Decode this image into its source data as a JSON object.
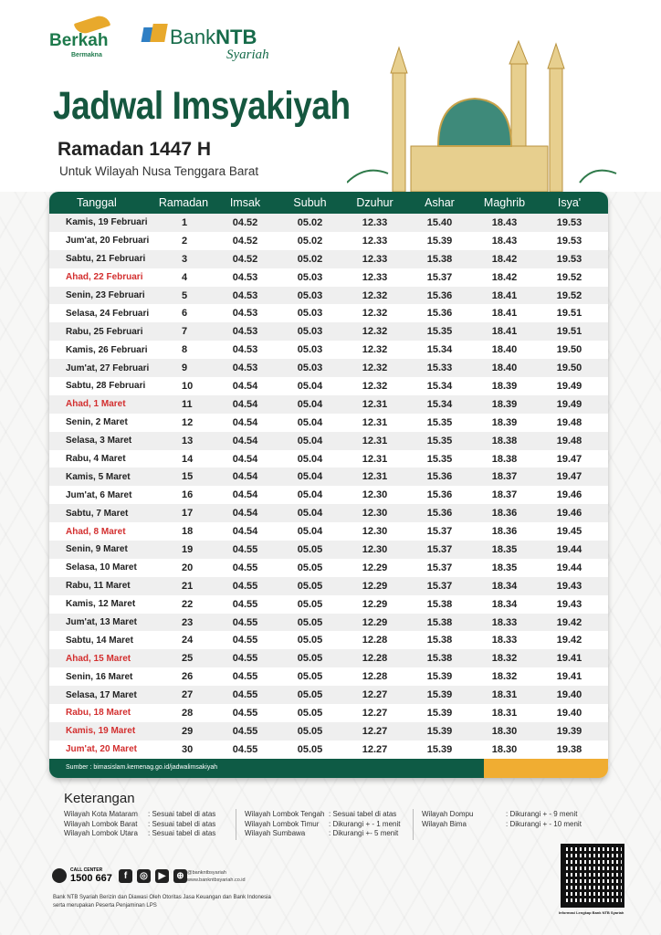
{
  "brand": {
    "berkah": "Berkah",
    "berkah_tag": "Bermakna",
    "bank_a": "Bank",
    "bank_b": "NTB",
    "bank_sub": "Syariah",
    "accent": "#0e5b45",
    "gold": "#f0ad32",
    "holiday": "#d32f2f"
  },
  "header": {
    "title": "Jadwal Imsyakiyah",
    "subtitle": "Ramadan 1447 H",
    "region": "Untuk Wilayah Nusa Tenggara Barat"
  },
  "table": {
    "columns": [
      "Tanggal",
      "Ramadan",
      "Imsak",
      "Subuh",
      "Dzuhur",
      "Ashar",
      "Maghrib",
      "Isya'"
    ],
    "rows": [
      [
        "Kamis, 19 Februari",
        "1",
        "04.52",
        "05.02",
        "12.33",
        "15.40",
        "18.43",
        "19.53",
        false
      ],
      [
        "Jum'at, 20 Februari",
        "2",
        "04.52",
        "05.02",
        "12.33",
        "15.39",
        "18.43",
        "19.53",
        false
      ],
      [
        "Sabtu, 21 Februari",
        "3",
        "04.52",
        "05.02",
        "12.33",
        "15.38",
        "18.42",
        "19.53",
        false
      ],
      [
        "Ahad, 22 Februari",
        "4",
        "04.53",
        "05.03",
        "12.33",
        "15.37",
        "18.42",
        "19.52",
        true
      ],
      [
        "Senin, 23 Februari",
        "5",
        "04.53",
        "05.03",
        "12.32",
        "15.36",
        "18.41",
        "19.52",
        false
      ],
      [
        "Selasa, 24 Februari",
        "6",
        "04.53",
        "05.03",
        "12.32",
        "15.36",
        "18.41",
        "19.51",
        false
      ],
      [
        "Rabu, 25 Februari",
        "7",
        "04.53",
        "05.03",
        "12.32",
        "15.35",
        "18.41",
        "19.51",
        false
      ],
      [
        "Kamis, 26 Februari",
        "8",
        "04.53",
        "05.03",
        "12.32",
        "15.34",
        "18.40",
        "19.50",
        false
      ],
      [
        "Jum'at, 27 Februari",
        "9",
        "04.53",
        "05.03",
        "12.32",
        "15.33",
        "18.40",
        "19.50",
        false
      ],
      [
        "Sabtu, 28 Februari",
        "10",
        "04.54",
        "05.04",
        "12.32",
        "15.34",
        "18.39",
        "19.49",
        false
      ],
      [
        "Ahad, 1 Maret",
        "11",
        "04.54",
        "05.04",
        "12.31",
        "15.34",
        "18.39",
        "19.49",
        true
      ],
      [
        "Senin, 2 Maret",
        "12",
        "04.54",
        "05.04",
        "12.31",
        "15.35",
        "18.39",
        "19.48",
        false
      ],
      [
        "Selasa, 3 Maret",
        "13",
        "04.54",
        "05.04",
        "12.31",
        "15.35",
        "18.38",
        "19.48",
        false
      ],
      [
        "Rabu, 4 Maret",
        "14",
        "04.54",
        "05.04",
        "12.31",
        "15.35",
        "18.38",
        "19.47",
        false
      ],
      [
        "Kamis, 5 Maret",
        "15",
        "04.54",
        "05.04",
        "12.31",
        "15.36",
        "18.37",
        "19.47",
        false
      ],
      [
        "Jum'at, 6 Maret",
        "16",
        "04.54",
        "05.04",
        "12.30",
        "15.36",
        "18.37",
        "19.46",
        false
      ],
      [
        "Sabtu, 7 Maret",
        "17",
        "04.54",
        "05.04",
        "12.30",
        "15.36",
        "18.36",
        "19.46",
        false
      ],
      [
        "Ahad, 8 Maret",
        "18",
        "04.54",
        "05.04",
        "12.30",
        "15.37",
        "18.36",
        "19.45",
        true
      ],
      [
        "Senin, 9 Maret",
        "19",
        "04.55",
        "05.05",
        "12.30",
        "15.37",
        "18.35",
        "19.44",
        false
      ],
      [
        "Selasa, 10 Maret",
        "20",
        "04.55",
        "05.05",
        "12.29",
        "15.37",
        "18.35",
        "19.44",
        false
      ],
      [
        "Rabu, 11 Maret",
        "21",
        "04.55",
        "05.05",
        "12.29",
        "15.37",
        "18.34",
        "19.43",
        false
      ],
      [
        "Kamis, 12 Maret",
        "22",
        "04.55",
        "05.05",
        "12.29",
        "15.38",
        "18.34",
        "19.43",
        false
      ],
      [
        "Jum'at, 13 Maret",
        "23",
        "04.55",
        "05.05",
        "12.29",
        "15.38",
        "18.33",
        "19.42",
        false
      ],
      [
        "Sabtu, 14 Maret",
        "24",
        "04.55",
        "05.05",
        "12.28",
        "15.38",
        "18.33",
        "19.42",
        false
      ],
      [
        "Ahad, 15 Maret",
        "25",
        "04.55",
        "05.05",
        "12.28",
        "15.38",
        "18.32",
        "19.41",
        true
      ],
      [
        "Senin, 16 Maret",
        "26",
        "04.55",
        "05.05",
        "12.28",
        "15.39",
        "18.32",
        "19.41",
        false
      ],
      [
        "Selasa, 17 Maret",
        "27",
        "04.55",
        "05.05",
        "12.27",
        "15.39",
        "18.31",
        "19.40",
        false
      ],
      [
        "Rabu, 18 Maret",
        "28",
        "04.55",
        "05.05",
        "12.27",
        "15.39",
        "18.31",
        "19.40",
        true
      ],
      [
        "Kamis, 19 Maret",
        "29",
        "04.55",
        "05.05",
        "12.27",
        "15.39",
        "18.30",
        "19.39",
        true
      ],
      [
        "Jum'at, 20 Maret",
        "30",
        "04.55",
        "05.05",
        "12.27",
        "15.39",
        "18.30",
        "19.38",
        true
      ]
    ],
    "source": "Sumber : bimasislam.kemenag.go.id/jadwalimsakiyah"
  },
  "keterangan": {
    "title": "Keterangan",
    "groups": [
      [
        [
          "Wilayah Kota Mataram",
          ": Sesuai tabel di atas"
        ],
        [
          "Wilayah Lombok Barat",
          ": Sesuai tabel di atas"
        ],
        [
          "Wilayah Lombok Utara",
          ": Sesuai tabel di atas"
        ]
      ],
      [
        [
          "Wilayah Lombok Tengah",
          ": Sesuai tabel di atas"
        ],
        [
          "Wilayah Lombok Timur",
          ": Dikurangi + - 1 menit"
        ],
        [
          "Wilayah Sumbawa",
          ": Dikurangi +- 5 menit"
        ]
      ],
      [
        [
          "Wilayah Dompu",
          ": Dikurangi + - 9 menit"
        ],
        [
          "Wilayah Bima",
          ": Dikurangi + - 10 menit"
        ]
      ]
    ]
  },
  "footer": {
    "call_center_label": "CALL CENTER",
    "call_center_number": "1500 667",
    "social_handle": "@bankntbsyariah",
    "website": "www.bankntbsyariah.co.id",
    "disclaimer_1": "Bank NTB Syariah Berizin dan Diawasi Oleh Otoritas Jasa Keuangan dan Bank Indonesia",
    "disclaimer_2": "serta merupakan Peserta Penjaminan LPS",
    "qr_caption": "Informasi Lengkap Bank NTB Syariah"
  }
}
